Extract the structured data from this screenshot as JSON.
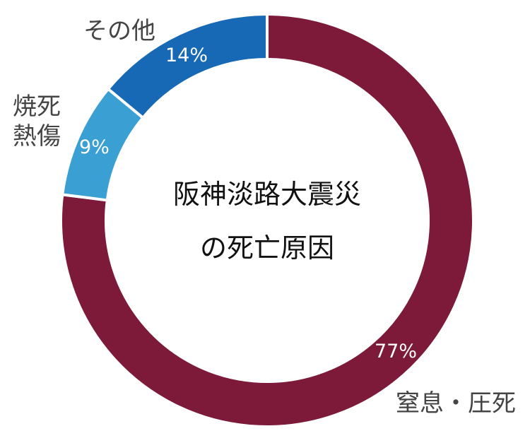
{
  "chart_data": {
    "type": "pie",
    "variant": "donut",
    "title_lines": [
      "阪神淡路大震災",
      "の死亡原因"
    ],
    "slices": [
      {
        "label": "窒息・圧死",
        "value": 77,
        "value_label": "77%",
        "color": "#7d1a3a"
      },
      {
        "label_lines": [
          "焼死",
          "熱傷"
        ],
        "value": 9,
        "value_label": "9%",
        "color": "#3a9fd2"
      },
      {
        "label": "その他",
        "value": 14,
        "value_label": "14%",
        "color": "#1769b5"
      }
    ],
    "slice_border_color": "#ffffff"
  }
}
